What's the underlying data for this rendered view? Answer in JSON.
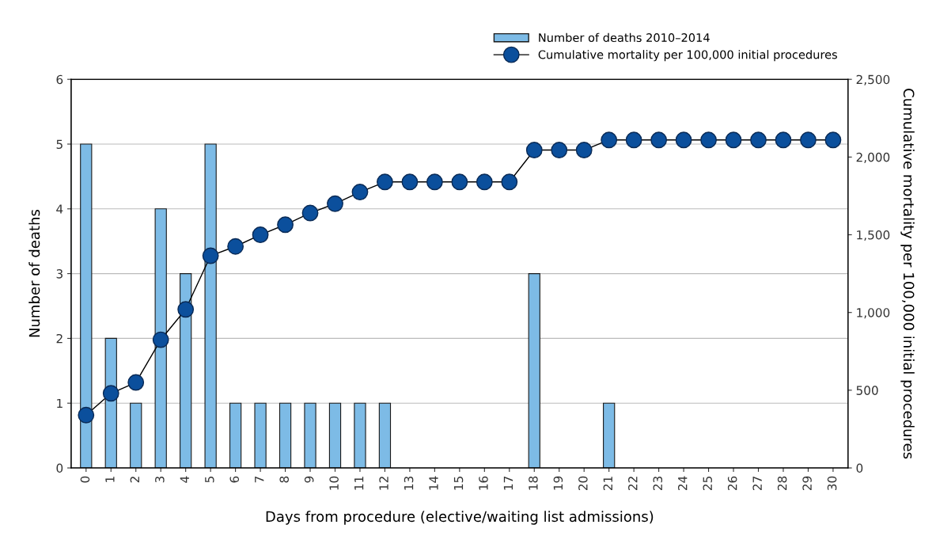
{
  "chart_data": {
    "type": "bar",
    "xlabel": "Days from procedure (elective/waiting list admissions)",
    "ylabel": "Number of deaths",
    "y2label": "Cumulative mortality per 100,000 initial procedures",
    "categories": [
      "0",
      "1",
      "2",
      "3",
      "4",
      "5",
      "6",
      "7",
      "8",
      "9",
      "10",
      "11",
      "12",
      "13",
      "14",
      "15",
      "16",
      "17",
      "18",
      "19",
      "20",
      "21",
      "22",
      "23",
      "24",
      "25",
      "26",
      "27",
      "28",
      "29",
      "30"
    ],
    "series": [
      {
        "name": "Number of deaths 2010–2014",
        "color": "#7dbbe6",
        "values": [
          5,
          2,
          1,
          4,
          3,
          5,
          1,
          1,
          1,
          1,
          1,
          1,
          1,
          0,
          0,
          0,
          0,
          0,
          3,
          0,
          0,
          1,
          0,
          0,
          0,
          0,
          0,
          0,
          0,
          0,
          0
        ]
      },
      {
        "name": "Cumulative mortality per 100,000 initial procedures",
        "type": "line",
        "axis": "y2",
        "color": "#0b4f9c",
        "marker": "circle",
        "values": [
          340,
          480,
          550,
          825,
          1020,
          1365,
          1425,
          1500,
          1565,
          1640,
          1700,
          1775,
          1840,
          1840,
          1840,
          1840,
          1840,
          1840,
          2045,
          2045,
          2045,
          2110,
          2110,
          2110,
          2110,
          2110,
          2110,
          2110,
          2110,
          2110,
          2110
        ]
      }
    ],
    "ylim": [
      0,
      6
    ],
    "yticks": [
      0,
      1,
      2,
      3,
      4,
      5,
      6
    ],
    "y2lim": [
      0,
      2500
    ],
    "y2ticks": [
      0,
      {
        "value": 500,
        "label": "500"
      },
      {
        "value": 1000,
        "label": "1,000"
      },
      {
        "value": 1500,
        "label": "1,500"
      },
      {
        "value": 2000,
        "label": "2,000"
      },
      {
        "value": 2500,
        "label": "2,500"
      }
    ],
    "grid": "y",
    "legend": "top right"
  }
}
